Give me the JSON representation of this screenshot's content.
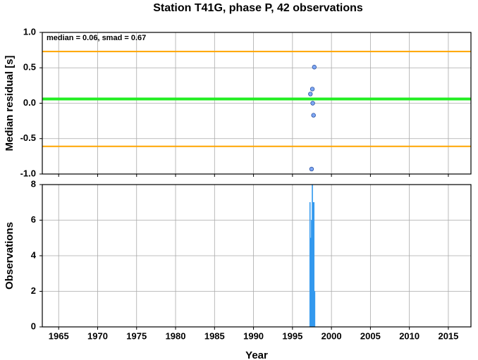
{
  "chart_data": [
    {
      "type": "scatter",
      "title": "Station T41G, phase P, 42 observations",
      "annotation": "median = 0.06, smad = 0.67",
      "ylabel": "Median residual [s]",
      "x": [
        1997.8,
        1997.55,
        1997.3,
        1997.6,
        1997.7,
        1997.45
      ],
      "values": [
        0.51,
        0.2,
        0.13,
        0.0,
        -0.17,
        -0.93
      ],
      "color": "#7fa8f5",
      "hlines": [
        {
          "value": 0.73,
          "color": "#ffa500"
        },
        {
          "value": 0.06,
          "color": "#22ee22"
        },
        {
          "value": -0.61,
          "color": "#ffa500"
        }
      ],
      "xlim": [
        1962.9,
        2017.9
      ],
      "xticks": [
        1965,
        1970,
        1975,
        1980,
        1985,
        1990,
        1995,
        2000,
        2005,
        2010,
        2015
      ],
      "ylim": [
        -1,
        1
      ],
      "yticks": [
        {
          "value": 1,
          "label": "1.0"
        },
        0.5,
        {
          "value": 0,
          "label": "0.0"
        },
        -0.5,
        {
          "value": -1,
          "label": "-1.0"
        }
      ],
      "grid": true
    },
    {
      "type": "histogram",
      "ylabel": "Observations",
      "xlabel": "Year",
      "bins": [
        1997.2,
        1997.3,
        1997.4,
        1997.5,
        1997.6,
        1997.7,
        1997.8,
        1997.9
      ],
      "values": [
        7,
        5,
        6,
        8,
        7,
        7,
        2
      ],
      "color": "#3399ee",
      "xlim": [
        1962.9,
        2017.9
      ],
      "xticks": [
        1965,
        1970,
        1975,
        1980,
        1985,
        1990,
        1995,
        2000,
        2005,
        2010,
        2015
      ],
      "ylim": [
        0,
        8
      ],
      "yticks": [
        0,
        2,
        4,
        6,
        8
      ],
      "grid": true
    }
  ]
}
